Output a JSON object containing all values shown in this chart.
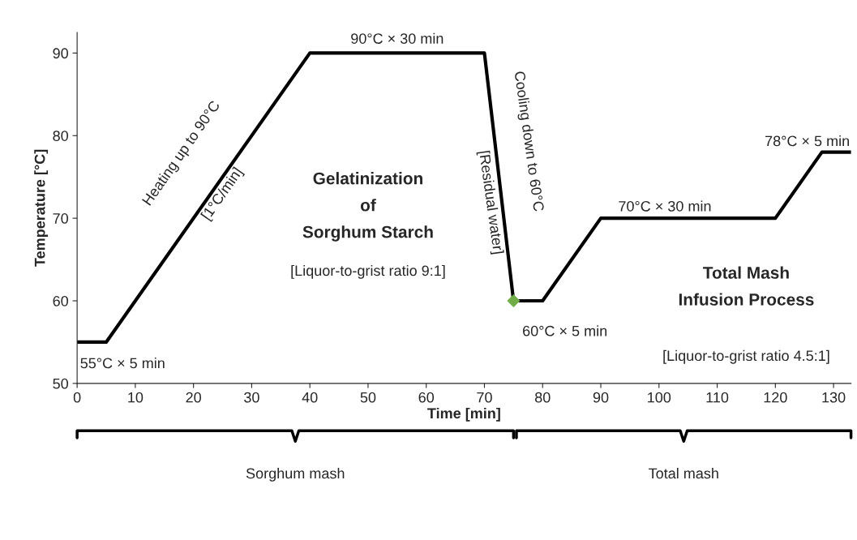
{
  "chart_data": {
    "type": "line",
    "xlabel": "Time [min]",
    "ylabel": "Temperature [°C]",
    "xlim": [
      0,
      133
    ],
    "ylim": [
      50,
      92.5
    ],
    "xticks": [
      0,
      10,
      20,
      30,
      40,
      50,
      60,
      70,
      80,
      90,
      100,
      110,
      120,
      130
    ],
    "yticks": [
      50,
      60,
      70,
      80,
      90
    ],
    "grid": false,
    "legend": false,
    "series": [
      {
        "color": "#000000",
        "marker": "none",
        "line_style": "solid",
        "x": [
          0,
          5,
          40,
          70,
          75,
          80,
          90,
          120,
          128,
          133
        ],
        "values": [
          55,
          55,
          90,
          90,
          60,
          60,
          70,
          70,
          78,
          78
        ]
      },
      {
        "type": "scatter",
        "color": "#70ad47",
        "marker": "diamond",
        "x": [
          75
        ],
        "values": [
          60
        ]
      }
    ],
    "annotations": [
      "55°C × 5 min",
      "90°C × 30 min",
      "Heating up to 90°C",
      "[1°C/min]",
      "Cooling down to 60°C",
      "[Residual water]",
      "Gelatinization\nof\nSorghum Starch",
      "[Liquor-to-grist ratio 9:1]",
      "60°C × 5 min",
      "70°C × 30 min",
      "78°C × 5 min",
      "Total Mash\nInfusion Process",
      "[Liquor-to-grist ratio 4.5:1]",
      "Sorghum mash",
      "Total mash"
    ]
  }
}
